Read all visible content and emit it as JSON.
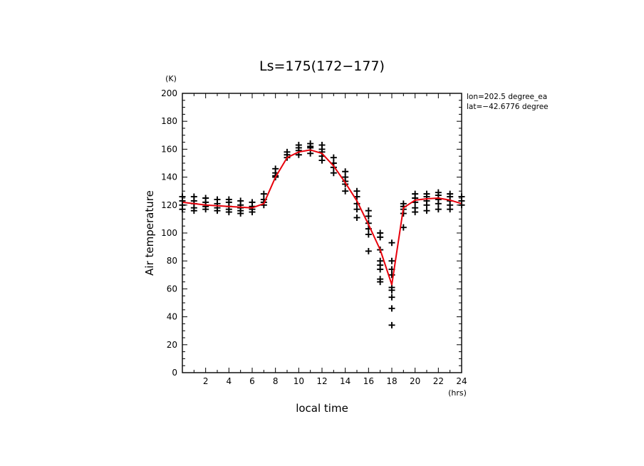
{
  "chart_data": {
    "type": "scatter",
    "title": "Ls=175(172−177)",
    "xlabel": "local time",
    "ylabel": "Air temperature",
    "x_unit": "(hrs)",
    "y_unit": "(K)",
    "xlim": [
      0,
      24
    ],
    "ylim": [
      0,
      200
    ],
    "xticks": [
      2,
      4,
      6,
      8,
      10,
      12,
      14,
      16,
      18,
      20,
      22,
      24
    ],
    "yticks": [
      0,
      20,
      40,
      60,
      80,
      100,
      120,
      140,
      160,
      180,
      200
    ],
    "annotations": [
      "lon=202.5 degree_ea",
      "lat=−42.6776 degree"
    ],
    "colors": {
      "mean_line": "#e8000b",
      "points": "#000000"
    },
    "series": [
      {
        "name": "samples",
        "style": "plus-markers",
        "points": [
          [
            0,
            126
          ],
          [
            0,
            123
          ],
          [
            0,
            120
          ],
          [
            0,
            117
          ],
          [
            1,
            126
          ],
          [
            1,
            123
          ],
          [
            1,
            121
          ],
          [
            1,
            118
          ],
          [
            1,
            116
          ],
          [
            2,
            125
          ],
          [
            2,
            122
          ],
          [
            2,
            119
          ],
          [
            2,
            117
          ],
          [
            3,
            124
          ],
          [
            3,
            121
          ],
          [
            3,
            118
          ],
          [
            3,
            116
          ],
          [
            4,
            124
          ],
          [
            4,
            122
          ],
          [
            4,
            119
          ],
          [
            4,
            117
          ],
          [
            4,
            115
          ],
          [
            5,
            123
          ],
          [
            5,
            120
          ],
          [
            5,
            118
          ],
          [
            5,
            116
          ],
          [
            5,
            114
          ],
          [
            6,
            122
          ],
          [
            6,
            119
          ],
          [
            6,
            117
          ],
          [
            6,
            115
          ],
          [
            7,
            128
          ],
          [
            7,
            124
          ],
          [
            7,
            122
          ],
          [
            7,
            120
          ],
          [
            8,
            146
          ],
          [
            8,
            143
          ],
          [
            8,
            141
          ],
          [
            8,
            140
          ],
          [
            9,
            158
          ],
          [
            9,
            156
          ],
          [
            9,
            154
          ],
          [
            10,
            163
          ],
          [
            10,
            161
          ],
          [
            10,
            159
          ],
          [
            10,
            156
          ],
          [
            11,
            164
          ],
          [
            11,
            162
          ],
          [
            11,
            161
          ],
          [
            11,
            157
          ],
          [
            12,
            163
          ],
          [
            12,
            160
          ],
          [
            12,
            158
          ],
          [
            12,
            155
          ],
          [
            12,
            152
          ],
          [
            13,
            154
          ],
          [
            13,
            150
          ],
          [
            13,
            147
          ],
          [
            13,
            143
          ],
          [
            14,
            144
          ],
          [
            14,
            140
          ],
          [
            14,
            137
          ],
          [
            14,
            135
          ],
          [
            14,
            130
          ],
          [
            15,
            130
          ],
          [
            15,
            126
          ],
          [
            15,
            121
          ],
          [
            15,
            117
          ],
          [
            15,
            111
          ],
          [
            16,
            116
          ],
          [
            16,
            112
          ],
          [
            16,
            107
          ],
          [
            16,
            103
          ],
          [
            16,
            99
          ],
          [
            16,
            87
          ],
          [
            17,
            100
          ],
          [
            17,
            97
          ],
          [
            17,
            88
          ],
          [
            17,
            80
          ],
          [
            17,
            77
          ],
          [
            17,
            74
          ],
          [
            17,
            67
          ],
          [
            17,
            65
          ],
          [
            18,
            93
          ],
          [
            18,
            80
          ],
          [
            18,
            74
          ],
          [
            18,
            70
          ],
          [
            18,
            61
          ],
          [
            18,
            59
          ],
          [
            18,
            54
          ],
          [
            18,
            46
          ],
          [
            18,
            34
          ],
          [
            19,
            121
          ],
          [
            19,
            119
          ],
          [
            19,
            117
          ],
          [
            19,
            114
          ],
          [
            19,
            104
          ],
          [
            20,
            128
          ],
          [
            20,
            125
          ],
          [
            20,
            122
          ],
          [
            20,
            118
          ],
          [
            20,
            115
          ],
          [
            21,
            128
          ],
          [
            21,
            126
          ],
          [
            21,
            123
          ],
          [
            21,
            120
          ],
          [
            21,
            116
          ],
          [
            22,
            129
          ],
          [
            22,
            127
          ],
          [
            22,
            124
          ],
          [
            22,
            121
          ],
          [
            22,
            117
          ],
          [
            23,
            128
          ],
          [
            23,
            126
          ],
          [
            23,
            123
          ],
          [
            23,
            120
          ],
          [
            23,
            117
          ],
          [
            24,
            126
          ],
          [
            24,
            123
          ],
          [
            24,
            120
          ]
        ]
      },
      {
        "name": "mean",
        "style": "line",
        "x": [
          0,
          1,
          2,
          3,
          4,
          5,
          6,
          7,
          8,
          9,
          10,
          11,
          12,
          13,
          14,
          15,
          16,
          17,
          18,
          19,
          20,
          21,
          22,
          23,
          24
        ],
        "y": [
          122,
          121,
          120,
          119.5,
          119,
          118.5,
          118,
          121,
          140,
          154,
          158,
          159.5,
          157,
          148,
          136,
          123,
          106,
          88,
          63,
          118,
          123.5,
          124.5,
          125,
          123.5,
          121
        ]
      }
    ]
  }
}
